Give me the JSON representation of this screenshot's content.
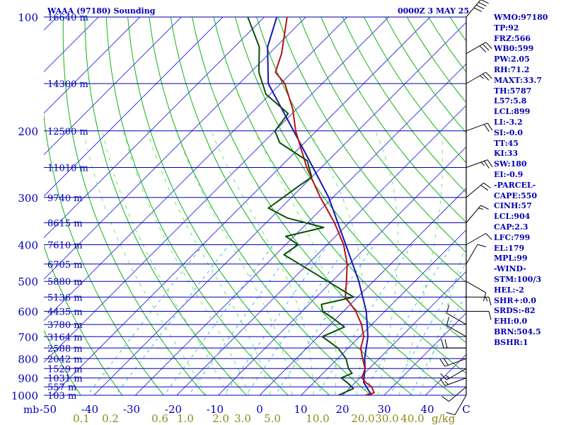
{
  "chart_data": {
    "type": "skew-t sounding",
    "title": "WAAA (97180) Sounding",
    "date_label": "0000Z  3 MAY 25",
    "y_axis_unit": "mb",
    "pressure_ticks": [
      "100",
      "200",
      "300",
      "400",
      "500",
      "600",
      "700",
      "800",
      "900",
      "1000"
    ],
    "temperature_ticks": [
      "-50",
      "-40",
      "-30",
      "-20",
      "-10",
      "0",
      "10",
      "20",
      "30",
      "40",
      "C"
    ],
    "mixing_ratio_unit": "g/kg",
    "mixing_ratio_ticks": [
      "0.1",
      "0.2",
      "0.6",
      "1.0",
      "2.0",
      "3.0",
      "5.0",
      "10.0",
      "20.0",
      "30.0",
      "40.0"
    ],
    "height_labels": [
      {
        "p": 100,
        "label": "16640 m"
      },
      {
        "p": 150,
        "label": "14300 m"
      },
      {
        "p": 200,
        "label": "12500 m"
      },
      {
        "p": 250,
        "label": "11010 m"
      },
      {
        "p": 300,
        "label": "9740 m"
      },
      {
        "p": 350,
        "label": "8615 m"
      },
      {
        "p": 400,
        "label": "7610 m"
      },
      {
        "p": 450,
        "label": "6705 m"
      },
      {
        "p": 500,
        "label": "5880 m"
      },
      {
        "p": 550,
        "label": "5136 m"
      },
      {
        "p": 600,
        "label": "4435 m"
      },
      {
        "p": 650,
        "label": "3780 m"
      },
      {
        "p": 700,
        "label": "3164 m"
      },
      {
        "p": 750,
        "label": "2588 m"
      },
      {
        "p": 800,
        "label": "2042 m"
      },
      {
        "p": 850,
        "label": "1529 m"
      },
      {
        "p": 900,
        "label": "1031 m"
      },
      {
        "p": 950,
        "label": "557 m"
      },
      {
        "p": 1000,
        "label": "103 m"
      }
    ],
    "temperature_profile": [
      {
        "p": 1000,
        "t": 25.5
      },
      {
        "p": 985,
        "t": 27
      },
      {
        "p": 950,
        "t": 25
      },
      {
        "p": 925,
        "t": 22.5
      },
      {
        "p": 900,
        "t": 20.5
      },
      {
        "p": 850,
        "t": 19
      },
      {
        "p": 800,
        "t": 16
      },
      {
        "p": 750,
        "t": 13
      },
      {
        "p": 700,
        "t": 11
      },
      {
        "p": 650,
        "t": 7.5
      },
      {
        "p": 600,
        "t": 3
      },
      {
        "p": 550,
        "t": -3
      },
      {
        "p": 500,
        "t": -6.5
      },
      {
        "p": 450,
        "t": -10.5
      },
      {
        "p": 400,
        "t": -16
      },
      {
        "p": 350,
        "t": -23.5
      },
      {
        "p": 300,
        "t": -33
      },
      {
        "p": 250,
        "t": -43.5
      },
      {
        "p": 200,
        "t": -55
      },
      {
        "p": 175,
        "t": -61
      },
      {
        "p": 150,
        "t": -69
      },
      {
        "p": 140,
        "t": -74
      },
      {
        "p": 125,
        "t": -77
      },
      {
        "p": 100,
        "t": -84.5
      }
    ],
    "dewpoint_profile": [
      {
        "p": 1000,
        "t": 19
      },
      {
        "p": 960,
        "t": 21
      },
      {
        "p": 925,
        "t": 18
      },
      {
        "p": 900,
        "t": 15.5
      },
      {
        "p": 875,
        "t": 17
      },
      {
        "p": 850,
        "t": 15
      },
      {
        "p": 800,
        "t": 12
      },
      {
        "p": 750,
        "t": 7.5
      },
      {
        "p": 700,
        "t": 1
      },
      {
        "p": 660,
        "t": 4
      },
      {
        "p": 625,
        "t": -1
      },
      {
        "p": 600,
        "t": -5
      },
      {
        "p": 575,
        "t": -7
      },
      {
        "p": 550,
        "t": -1
      },
      {
        "p": 500,
        "t": -11
      },
      {
        "p": 450,
        "t": -22
      },
      {
        "p": 425,
        "t": -28
      },
      {
        "p": 400,
        "t": -27
      },
      {
        "p": 380,
        "t": -32
      },
      {
        "p": 360,
        "t": -25
      },
      {
        "p": 340,
        "t": -36
      },
      {
        "p": 320,
        "t": -43
      },
      {
        "p": 300,
        "t": -42
      },
      {
        "p": 280,
        "t": -41
      },
      {
        "p": 265,
        "t": -40
      },
      {
        "p": 240,
        "t": -45
      },
      {
        "p": 215,
        "t": -56
      },
      {
        "p": 200,
        "t": -60
      },
      {
        "p": 180,
        "t": -61
      },
      {
        "p": 160,
        "t": -71
      },
      {
        "p": 140,
        "t": -78
      },
      {
        "p": 120,
        "t": -84
      },
      {
        "p": 100,
        "t": -94
      }
    ],
    "parcel_profile": [
      {
        "p": 1000,
        "t": 27
      },
      {
        "p": 925,
        "t": 22
      },
      {
        "p": 900,
        "t": 21
      },
      {
        "p": 850,
        "t": 19
      },
      {
        "p": 800,
        "t": 16.5
      },
      {
        "p": 700,
        "t": 12
      },
      {
        "p": 600,
        "t": 5.5
      },
      {
        "p": 500,
        "t": -3.5
      },
      {
        "p": 400,
        "t": -15.5
      },
      {
        "p": 300,
        "t": -31
      },
      {
        "p": 250,
        "t": -42
      },
      {
        "p": 200,
        "t": -55.5
      },
      {
        "p": 150,
        "t": -73
      },
      {
        "p": 120,
        "t": -82
      },
      {
        "p": 100,
        "t": -87
      }
    ],
    "wind_barbs": [
      {
        "p": 1000,
        "dir": 210,
        "kt": 10
      },
      {
        "p": 950,
        "dir": 230,
        "kt": 10
      },
      {
        "p": 900,
        "dir": 250,
        "kt": 15
      },
      {
        "p": 850,
        "dir": 240,
        "kt": 15
      },
      {
        "p": 800,
        "dir": 250,
        "kt": 20
      },
      {
        "p": 750,
        "dir": 270,
        "kt": 20
      },
      {
        "p": 700,
        "dir": 300,
        "kt": 10
      },
      {
        "p": 650,
        "dir": 300,
        "kt": 10
      },
      {
        "p": 600,
        "dir": 90,
        "kt": 10
      },
      {
        "p": 550,
        "dir": 90,
        "kt": 15
      },
      {
        "p": 500,
        "dir": 120,
        "kt": 10
      },
      {
        "p": 450,
        "dir": 30,
        "kt": 10
      },
      {
        "p": 400,
        "dir": 60,
        "kt": 10
      },
      {
        "p": 350,
        "dir": 40,
        "kt": 15
      },
      {
        "p": 300,
        "dir": 50,
        "kt": 20
      },
      {
        "p": 250,
        "dir": 70,
        "kt": 25
      },
      {
        "p": 200,
        "dir": 70,
        "kt": 20
      },
      {
        "p": 150,
        "dir": 60,
        "kt": 25
      },
      {
        "p": 125,
        "dir": 60,
        "kt": 30
      },
      {
        "p": 100,
        "dir": 40,
        "kt": 40
      }
    ],
    "indices": [
      "WMO:97180",
      "TP:92",
      "FRZ:566",
      "WB0:599",
      "PW:2.05",
      "RH:71.2",
      "MAXT:33.7",
      "TH:5787",
      "L57:5.8",
      "LCL:899",
      "LI:-3.2",
      "SI:-0.0",
      "TT:45",
      "KI:33",
      "SW:180",
      "EI:-0.9",
      "-PARCEL-",
      "CAPE:550",
      "CINH:57",
      "LCL:904",
      "CAP:2.3",
      "LFC:799",
      "EL:179",
      "MPL:99",
      "-WIND-",
      "STM:100/3",
      "HEL:-2",
      "SHR+:0.0",
      "SRDS:-82",
      "EHI:0.0",
      "BRN:504.5",
      "BSHR:1"
    ],
    "colors": {
      "isobar": "#0000b4",
      "isotherm": "#3c3ce8",
      "dry_adiabat": "#11b311",
      "moist_adiabat": "#79e079",
      "mixing_ratio": "#3cb4e8",
      "temperature": "#b41414",
      "dewpoint": "#0a500a",
      "parcel": "#1414b4",
      "text": "#0000b4",
      "mixing_label": "#8c8c14",
      "wind": "#000000"
    }
  }
}
